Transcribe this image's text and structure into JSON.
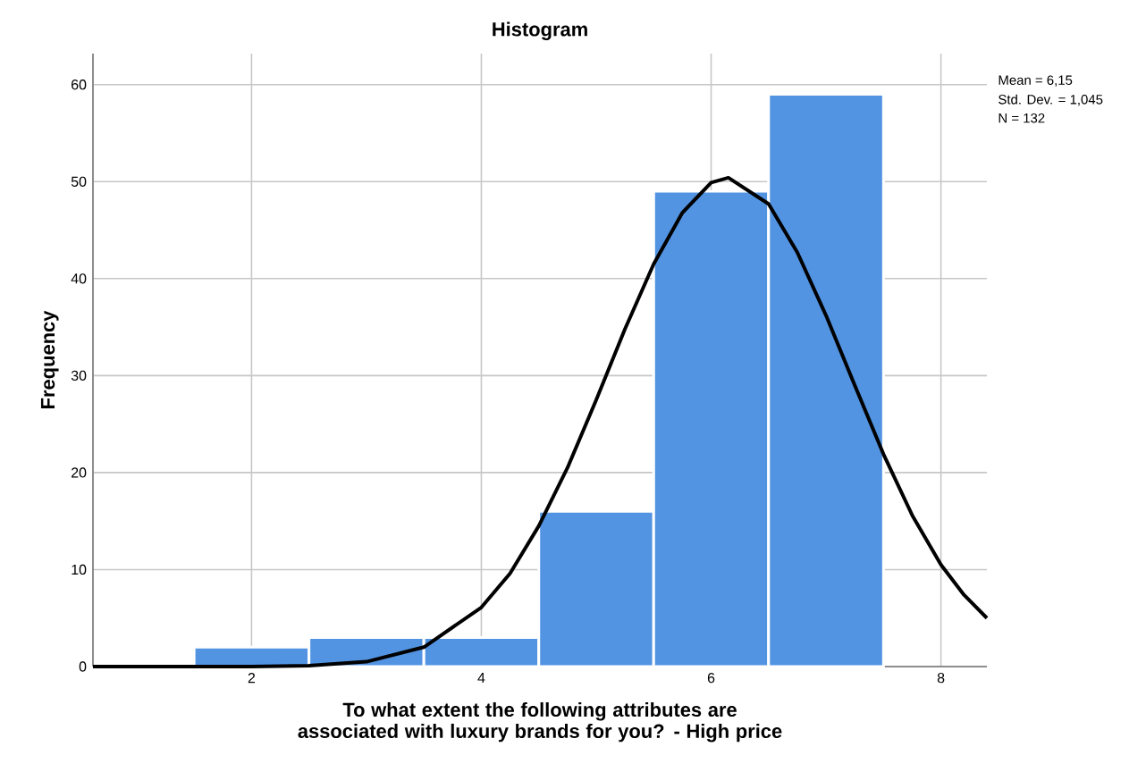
{
  "chart_data": {
    "type": "histogram",
    "title": "Histogram",
    "xlabel": "To what extent the following attributes are associated with luxury brands for you? - High price",
    "ylabel": "Frequency",
    "series": [
      {
        "color": "#5294e2",
        "bins": [
          1.5,
          2.5,
          3.5,
          4.5,
          5.5,
          6.5,
          7.5
        ],
        "values": [
          2,
          3,
          3,
          16,
          49,
          59
        ]
      },
      {
        "type": "line",
        "color": "#000000",
        "x": [
          0.62,
          1.0,
          1.5,
          2.0,
          2.5,
          3.0,
          3.5,
          4.0,
          4.25,
          4.5,
          4.75,
          5.0,
          5.25,
          5.5,
          5.75,
          6.0,
          6.15,
          6.5,
          6.75,
          7.0,
          7.25,
          7.5,
          7.75,
          8.0,
          8.2,
          8.4
        ],
        "values": [
          0,
          0,
          0,
          0,
          0.1,
          0.5,
          2.0,
          6.1,
          9.6,
          14.5,
          20.5,
          27.5,
          34.8,
          41.5,
          46.8,
          49.9,
          50.4,
          47.7,
          42.7,
          36.2,
          29.0,
          21.9,
          15.6,
          10.5,
          7.4,
          5.0
        ]
      }
    ],
    "xlim": [
      0.62,
      8.4
    ],
    "ylim": [
      0,
      63.2
    ],
    "xticks": [
      2,
      4,
      6,
      8
    ],
    "yticks": [
      0,
      10,
      20,
      30,
      40,
      50,
      60
    ],
    "grid": true,
    "annotations": [
      "Mean = 6,15",
      "Std. Dev. = 1,045",
      "N = 132"
    ]
  }
}
